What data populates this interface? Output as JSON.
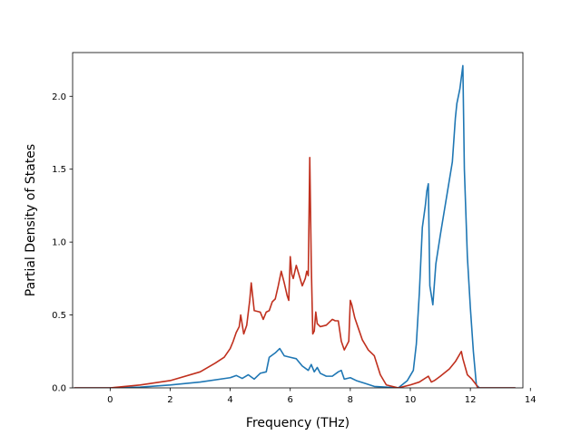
{
  "chart_data": {
    "type": "line",
    "title": "",
    "xlabel": "Frequency (THz)",
    "ylabel": "Partial Density of States",
    "xlim": [
      -1.25,
      13.75
    ],
    "ylim": [
      0,
      2.3
    ],
    "xticks": [
      0,
      2,
      4,
      6,
      8,
      10,
      12,
      14
    ],
    "yticks": [
      0.0,
      0.5,
      1.0,
      1.5,
      2.0
    ],
    "xtick_labels": [
      "0",
      "2",
      "4",
      "6",
      "8",
      "10",
      "12",
      "14"
    ],
    "ytick_labels": [
      "0.0",
      "0.5",
      "1.0",
      "1.5",
      "2.0"
    ],
    "grid": false,
    "legend": null,
    "series": [
      {
        "color": "#1f77b4",
        "x": [
          -1.2,
          0,
          1,
          2,
          3,
          4,
          4.2,
          4.4,
          4.6,
          4.8,
          5.0,
          5.2,
          5.3,
          5.5,
          5.65,
          5.8,
          6.0,
          6.2,
          6.4,
          6.6,
          6.7,
          6.8,
          6.9,
          7.0,
          7.2,
          7.4,
          7.6,
          7.7,
          7.8,
          8.0,
          8.2,
          8.5,
          8.8,
          9.2,
          9.6,
          9.9,
          10.1,
          10.2,
          10.3,
          10.4,
          10.5,
          10.55,
          10.6,
          10.65,
          10.75,
          10.85,
          11.0,
          11.2,
          11.4,
          11.5,
          11.55,
          11.65,
          11.75,
          11.8,
          11.9,
          12.0,
          12.1,
          12.2,
          12.3,
          13.5
        ],
        "y": [
          0,
          0,
          0.005,
          0.02,
          0.04,
          0.07,
          0.085,
          0.065,
          0.09,
          0.06,
          0.1,
          0.11,
          0.21,
          0.24,
          0.27,
          0.22,
          0.21,
          0.2,
          0.15,
          0.12,
          0.16,
          0.11,
          0.14,
          0.1,
          0.08,
          0.08,
          0.11,
          0.12,
          0.06,
          0.07,
          0.05,
          0.03,
          0.01,
          0.005,
          0,
          0.05,
          0.12,
          0.3,
          0.65,
          1.1,
          1.25,
          1.35,
          1.4,
          0.7,
          0.57,
          0.85,
          1.05,
          1.3,
          1.55,
          1.85,
          1.95,
          2.05,
          2.21,
          1.5,
          0.9,
          0.55,
          0.25,
          0.02,
          0,
          0
        ]
      },
      {
        "color": "#c0301e",
        "x": [
          -1.2,
          0,
          1,
          2,
          3,
          3.5,
          3.8,
          4.0,
          4.1,
          4.2,
          4.3,
          4.35,
          4.45,
          4.55,
          4.65,
          4.7,
          4.8,
          5.0,
          5.1,
          5.2,
          5.3,
          5.4,
          5.5,
          5.6,
          5.7,
          5.8,
          5.9,
          5.95,
          6.0,
          6.05,
          6.1,
          6.2,
          6.3,
          6.4,
          6.5,
          6.55,
          6.6,
          6.65,
          6.7,
          6.75,
          6.8,
          6.85,
          6.9,
          7.0,
          7.2,
          7.4,
          7.5,
          7.6,
          7.7,
          7.8,
          7.95,
          8.0,
          8.05,
          8.15,
          8.25,
          8.4,
          8.6,
          8.8,
          9.0,
          9.2,
          9.6,
          10.0,
          10.3,
          10.6,
          10.7,
          10.8,
          11.0,
          11.3,
          11.5,
          11.7,
          11.75,
          11.9,
          12.05,
          12.2,
          12.25,
          13.5
        ],
        "y": [
          0,
          0,
          0.02,
          0.05,
          0.11,
          0.17,
          0.21,
          0.27,
          0.32,
          0.38,
          0.42,
          0.5,
          0.37,
          0.43,
          0.6,
          0.72,
          0.53,
          0.52,
          0.47,
          0.52,
          0.53,
          0.59,
          0.61,
          0.7,
          0.8,
          0.72,
          0.63,
          0.6,
          0.9,
          0.78,
          0.75,
          0.84,
          0.77,
          0.7,
          0.75,
          0.8,
          0.77,
          1.58,
          0.85,
          0.37,
          0.39,
          0.52,
          0.44,
          0.42,
          0.43,
          0.47,
          0.46,
          0.46,
          0.32,
          0.26,
          0.32,
          0.6,
          0.57,
          0.48,
          0.42,
          0.33,
          0.26,
          0.22,
          0.09,
          0.02,
          0,
          0.02,
          0.04,
          0.08,
          0.04,
          0.05,
          0.08,
          0.13,
          0.18,
          0.25,
          0.2,
          0.09,
          0.06,
          0.02,
          0,
          0
        ]
      }
    ]
  }
}
